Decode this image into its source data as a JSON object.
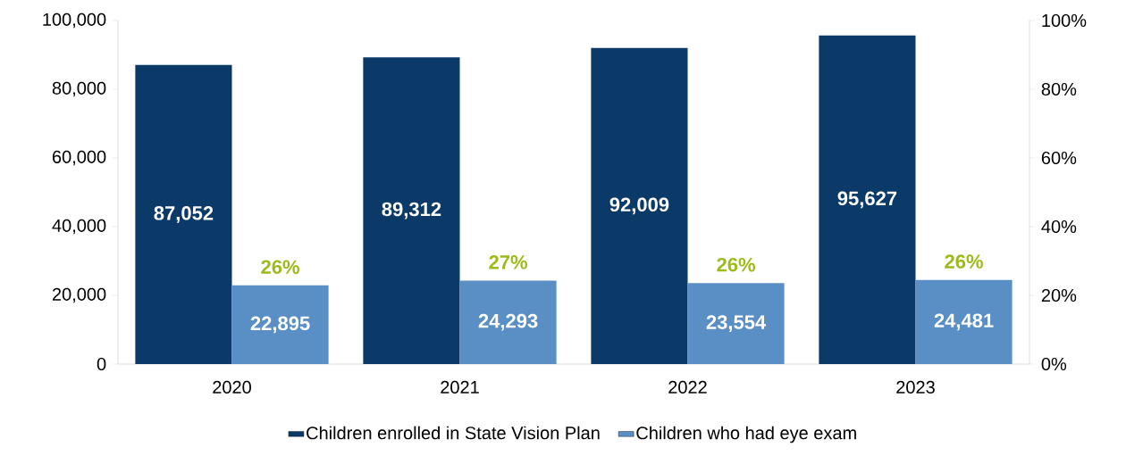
{
  "chart_data": {
    "type": "bar",
    "categories": [
      "2020",
      "2021",
      "2022",
      "2023"
    ],
    "series": [
      {
        "name": "Children enrolled in State Vision Plan",
        "color": "#0b3a68",
        "values": [
          87052,
          89312,
          92009,
          95627
        ],
        "value_labels": [
          "87,052",
          "89,312",
          "92,009",
          "95,627"
        ]
      },
      {
        "name": "Children who had eye exam",
        "color": "#5a8fc6",
        "values": [
          22895,
          24293,
          23554,
          24481
        ],
        "value_labels": [
          "22,895",
          "24,293",
          "23,554",
          "24,481"
        ]
      }
    ],
    "ylim": [
      0,
      100000
    ],
    "yticks": [
      0,
      {
        "value": 20000,
        "label": "20,000"
      },
      {
        "value": 40000,
        "label": "40,000"
      },
      {
        "value": 60000,
        "label": "60,000"
      },
      {
        "value": 80000,
        "label": "80,000"
      },
      {
        "value": 100000,
        "label": "100,000"
      }
    ],
    "y2lim": [
      0,
      100
    ],
    "y2ticks": [
      {
        "value": 0,
        "label": "0%"
      },
      {
        "value": 20,
        "label": "20%"
      },
      {
        "value": 40,
        "label": "40%"
      },
      {
        "value": 60,
        "label": "60%"
      },
      {
        "value": 80,
        "label": "80%"
      },
      {
        "value": 100,
        "label": "100%"
      }
    ],
    "annotations": [
      {
        "text": "26%",
        "x": "2020",
        "y": 22895
      },
      {
        "text": "27%",
        "x": "2021",
        "y": 24293
      },
      {
        "text": "26%",
        "x": "2022",
        "y": 23554
      },
      {
        "text": "26%",
        "x": "2023",
        "y": 24481
      }
    ],
    "legend": "bottom"
  }
}
